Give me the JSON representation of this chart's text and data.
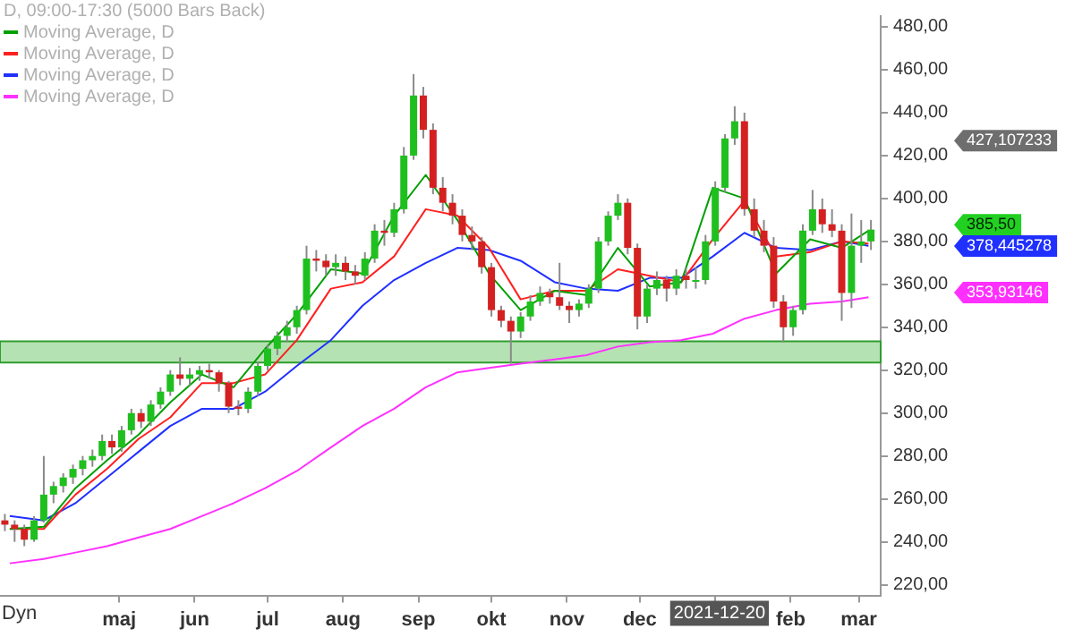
{
  "chart_data": {
    "type": "candlestick",
    "title": "D, 09:00-17:30 (5000 Bars Back)",
    "x": [
      "2021-03-15",
      "2021-03-19",
      "2021-03-23",
      "2021-03-27",
      "2021-03-31",
      "2021-04-04",
      "2021-04-08",
      "2021-04-12",
      "2021-04-16",
      "2021-04-20",
      "2021-04-24",
      "2021-04-28",
      "2021-05-02",
      "2021-05-06",
      "2021-05-10",
      "2021-05-14",
      "2021-05-18",
      "2021-05-22",
      "2021-05-26",
      "2021-05-30",
      "2021-06-03",
      "2021-06-07",
      "2021-06-11",
      "2021-06-15",
      "2021-06-19",
      "2021-06-23",
      "2021-06-27",
      "2021-07-01",
      "2021-07-05",
      "2021-07-09",
      "2021-07-13",
      "2021-07-17",
      "2021-07-21",
      "2021-07-25",
      "2021-07-29",
      "2021-08-02",
      "2021-08-06",
      "2021-08-10",
      "2021-08-14",
      "2021-08-18",
      "2021-08-22",
      "2021-08-26",
      "2021-08-30",
      "2021-09-03",
      "2021-09-07",
      "2021-09-11",
      "2021-09-15",
      "2021-09-19",
      "2021-09-23",
      "2021-09-27",
      "2021-10-01",
      "2021-10-05",
      "2021-10-09",
      "2021-10-13",
      "2021-10-17",
      "2021-10-21",
      "2021-10-25",
      "2021-10-29",
      "2021-11-02",
      "2021-11-06",
      "2021-11-10",
      "2021-11-14",
      "2021-11-18",
      "2021-11-22",
      "2021-11-26",
      "2021-11-30",
      "2021-12-04",
      "2021-12-08",
      "2021-12-12",
      "2021-12-16",
      "2021-12-20",
      "2021-12-24",
      "2021-12-28",
      "2022-01-01",
      "2022-01-05",
      "2022-01-09",
      "2022-01-13",
      "2022-01-17",
      "2022-01-21",
      "2022-01-25",
      "2022-01-29",
      "2022-02-02",
      "2022-02-06",
      "2022-02-10",
      "2022-02-14",
      "2022-02-18",
      "2022-02-22",
      "2022-02-26",
      "2022-03-02",
      "2022-03-06"
    ],
    "ohlc": [
      [
        250,
        253,
        245,
        248
      ],
      [
        248,
        250,
        240,
        246
      ],
      [
        246,
        248,
        238,
        241
      ],
      [
        241,
        252,
        240,
        250
      ],
      [
        250,
        280,
        249,
        262
      ],
      [
        262,
        268,
        258,
        266
      ],
      [
        266,
        272,
        263,
        270
      ],
      [
        270,
        276,
        267,
        274
      ],
      [
        274,
        280,
        271,
        278
      ],
      [
        278,
        283,
        275,
        280
      ],
      [
        280,
        290,
        278,
        287
      ],
      [
        287,
        290,
        281,
        284
      ],
      [
        284,
        294,
        282,
        292
      ],
      [
        292,
        302,
        290,
        300
      ],
      [
        300,
        302,
        293,
        296
      ],
      [
        296,
        306,
        294,
        304
      ],
      [
        304,
        312,
        302,
        310
      ],
      [
        310,
        320,
        308,
        318
      ],
      [
        318,
        326,
        313,
        316
      ],
      [
        316,
        321,
        313,
        318
      ],
      [
        318,
        322,
        315,
        320
      ],
      [
        320,
        323,
        316,
        319
      ],
      [
        319,
        320,
        310,
        314
      ],
      [
        314,
        315,
        300,
        303
      ],
      [
        303,
        306,
        299,
        302
      ],
      [
        302,
        312,
        300,
        310
      ],
      [
        310,
        324,
        308,
        322
      ],
      [
        322,
        332,
        320,
        330
      ],
      [
        330,
        338,
        327,
        336
      ],
      [
        336,
        343,
        333,
        340
      ],
      [
        340,
        350,
        337,
        348
      ],
      [
        348,
        378,
        346,
        372
      ],
      [
        372,
        376,
        366,
        371
      ],
      [
        371,
        374,
        364,
        368
      ],
      [
        368,
        374,
        364,
        370
      ],
      [
        370,
        373,
        362,
        366
      ],
      [
        366,
        369,
        360,
        364
      ],
      [
        364,
        375,
        362,
        372
      ],
      [
        372,
        388,
        370,
        385
      ],
      [
        385,
        390,
        378,
        384
      ],
      [
        384,
        398,
        382,
        395
      ],
      [
        395,
        424,
        393,
        420
      ],
      [
        420,
        458,
        418,
        448
      ],
      [
        448,
        452,
        428,
        432
      ],
      [
        432,
        435,
        402,
        405
      ],
      [
        405,
        410,
        394,
        398
      ],
      [
        398,
        402,
        388,
        392
      ],
      [
        392,
        395,
        380,
        383
      ],
      [
        383,
        387,
        376,
        380
      ],
      [
        380,
        382,
        365,
        368
      ],
      [
        368,
        370,
        345,
        348
      ],
      [
        348,
        350,
        340,
        343
      ],
      [
        343,
        345,
        323,
        338
      ],
      [
        338,
        347,
        335,
        345
      ],
      [
        345,
        355,
        343,
        352
      ],
      [
        352,
        359,
        350,
        356
      ],
      [
        356,
        358,
        351,
        354
      ],
      [
        354,
        370,
        348,
        350
      ],
      [
        350,
        352,
        342,
        348
      ],
      [
        348,
        353,
        345,
        351
      ],
      [
        351,
        360,
        349,
        358
      ],
      [
        358,
        382,
        356,
        380
      ],
      [
        380,
        394,
        378,
        392
      ],
      [
        392,
        402,
        390,
        398
      ],
      [
        398,
        400,
        374,
        377
      ],
      [
        377,
        379,
        339,
        345
      ],
      [
        345,
        360,
        342,
        358
      ],
      [
        358,
        366,
        355,
        362
      ],
      [
        362,
        364,
        352,
        358
      ],
      [
        358,
        367,
        355,
        364
      ],
      [
        364,
        368,
        358,
        362
      ],
      [
        362,
        368,
        358,
        362
      ],
      [
        362,
        383,
        360,
        380
      ],
      [
        380,
        408,
        378,
        405
      ],
      [
        405,
        430,
        403,
        428
      ],
      [
        428,
        443,
        425,
        436
      ],
      [
        436,
        440,
        392,
        395
      ],
      [
        395,
        400,
        382,
        385
      ],
      [
        385,
        390,
        375,
        378
      ],
      [
        378,
        382,
        349,
        352
      ],
      [
        352,
        355,
        333,
        340
      ],
      [
        340,
        350,
        336,
        348
      ],
      [
        348,
        388,
        346,
        385
      ],
      [
        385,
        404,
        383,
        395
      ],
      [
        395,
        400,
        384,
        388
      ],
      [
        388,
        395,
        382,
        385
      ],
      [
        385,
        388,
        343,
        356
      ],
      [
        356,
        393,
        349,
        378
      ],
      [
        378,
        390,
        370,
        380
      ],
      [
        380,
        390,
        376,
        385.5
      ]
    ],
    "series": [
      {
        "name": "Moving Average, D",
        "type": "line",
        "color": "#00a000",
        "x": [
          "2021-03-17",
          "2021-03-31",
          "2021-04-13",
          "2021-04-26",
          "2021-05-09",
          "2021-05-22",
          "2021-06-04",
          "2021-06-17",
          "2021-06-30",
          "2021-07-13",
          "2021-07-27",
          "2021-08-09",
          "2021-08-22",
          "2021-09-04",
          "2021-09-17",
          "2021-09-30",
          "2021-10-13",
          "2021-10-27",
          "2021-11-09",
          "2021-11-22",
          "2021-12-05",
          "2021-12-18",
          "2021-12-31",
          "2022-01-13",
          "2022-01-26",
          "2022-02-09",
          "2022-02-22",
          "2022-03-05"
        ],
        "values": [
          246,
          247,
          265,
          278,
          290,
          305,
          318,
          312,
          330,
          346,
          367,
          365,
          392,
          411,
          390,
          365,
          348,
          357,
          355,
          377,
          359,
          361,
          405,
          400,
          365,
          381,
          377,
          385
        ]
      },
      {
        "name": "Moving Average, D",
        "type": "line",
        "color": "#ff2020",
        "x": [
          "2021-03-17",
          "2021-03-31",
          "2021-04-13",
          "2021-04-26",
          "2021-05-09",
          "2021-05-22",
          "2021-06-04",
          "2021-06-17",
          "2021-06-30",
          "2021-07-13",
          "2021-07-27",
          "2021-08-09",
          "2021-08-22",
          "2021-09-04",
          "2021-09-17",
          "2021-09-30",
          "2021-10-13",
          "2021-10-27",
          "2021-11-09",
          "2021-11-22",
          "2021-12-05",
          "2021-12-18",
          "2021-12-31",
          "2022-01-13",
          "2022-01-26",
          "2022-02-09",
          "2022-02-22",
          "2022-03-05"
        ],
        "values": [
          246,
          246,
          262,
          274,
          288,
          298,
          314,
          314,
          318,
          334,
          358,
          361,
          373,
          395,
          392,
          377,
          353,
          357,
          357,
          367,
          364,
          361,
          381,
          399,
          373,
          375,
          380,
          379
        ]
      },
      {
        "name": "Moving Average, D",
        "type": "line",
        "color": "#2030ff",
        "x": [
          "2021-03-17",
          "2021-03-31",
          "2021-04-13",
          "2021-04-26",
          "2021-05-09",
          "2021-05-22",
          "2021-06-04",
          "2021-06-17",
          "2021-06-30",
          "2021-07-13",
          "2021-07-27",
          "2021-08-09",
          "2021-08-22",
          "2021-09-04",
          "2021-09-17",
          "2021-09-30",
          "2021-10-13",
          "2021-10-27",
          "2021-11-09",
          "2021-11-22",
          "2021-12-05",
          "2021-12-18",
          "2021-12-31",
          "2022-01-13",
          "2022-01-26",
          "2022-02-09",
          "2022-02-22",
          "2022-03-05"
        ],
        "values": [
          252,
          250,
          258,
          270,
          282,
          294,
          302,
          302,
          310,
          322,
          334,
          350,
          362,
          370,
          377,
          376,
          371,
          361,
          358,
          357,
          363,
          363,
          373,
          384,
          377,
          376,
          380,
          378
        ]
      },
      {
        "name": "Moving Average, D",
        "type": "line",
        "color": "#ff30ff",
        "x": [
          "2021-03-17",
          "2021-03-31",
          "2021-04-13",
          "2021-04-26",
          "2021-05-09",
          "2021-05-22",
          "2021-06-04",
          "2021-06-17",
          "2021-06-30",
          "2021-07-13",
          "2021-07-27",
          "2021-08-09",
          "2021-08-22",
          "2021-09-04",
          "2021-09-17",
          "2021-09-30",
          "2021-10-13",
          "2021-10-27",
          "2021-11-09",
          "2021-11-22",
          "2021-12-05",
          "2021-12-18",
          "2021-12-31",
          "2022-01-13",
          "2022-01-26",
          "2022-02-09",
          "2022-02-22",
          "2022-03-05"
        ],
        "values": [
          230,
          232,
          235,
          238,
          242,
          246,
          252,
          258,
          265,
          273,
          284,
          294,
          302,
          312,
          319,
          321,
          323,
          325,
          327,
          331,
          333,
          334,
          337,
          344,
          348,
          351,
          352,
          354
        ]
      }
    ],
    "xlim": [
      "2021-03-13",
      "2022-03-10"
    ],
    "xticks": [
      {
        "value": "2021-05-01",
        "label": "maj"
      },
      {
        "value": "2021-06-01",
        "label": "jun"
      },
      {
        "value": "2021-07-01",
        "label": "jul"
      },
      {
        "value": "2021-08-01",
        "label": "aug"
      },
      {
        "value": "2021-09-01",
        "label": "sep"
      },
      {
        "value": "2021-10-01",
        "label": "okt"
      },
      {
        "value": "2021-11-01",
        "label": "nov"
      },
      {
        "value": "2021-12-01",
        "label": "dec"
      },
      {
        "value": "2022-01-01",
        "label": null
      },
      {
        "value": "2022-02-01",
        "label": "feb"
      },
      {
        "value": "2022-03-01",
        "label": "mar"
      }
    ],
    "ylim": [
      215,
      485
    ],
    "yticks": [
      {
        "value": 220,
        "label": "220,00"
      },
      {
        "value": 240,
        "label": "240,00"
      },
      {
        "value": 260,
        "label": "260,00"
      },
      {
        "value": 280,
        "label": "280,00"
      },
      {
        "value": 300,
        "label": "300,00"
      },
      {
        "value": 320,
        "label": "320,00"
      },
      {
        "value": 340,
        "label": "340,00"
      },
      {
        "value": 360,
        "label": "360,00"
      },
      {
        "value": 380,
        "label": "380,00"
      },
      {
        "value": 400,
        "label": "400,00"
      },
      {
        "value": 420,
        "label": "420,00"
      },
      {
        "value": 440,
        "label": "440,00"
      },
      {
        "value": 460,
        "label": "460,00"
      },
      {
        "value": 480,
        "label": "480,00"
      }
    ],
    "bands": [
      {
        "axis": "y",
        "from": 323.5,
        "to": 333.5,
        "color": "#b5e2b2"
      }
    ],
    "annotations": [
      "427,107233",
      "385,50",
      "378,445278",
      "353,93146",
      "2021-12-20",
      "Dyn"
    ],
    "value_labels": [
      null,
      null,
      null,
      null,
      null,
      null,
      null,
      null,
      null,
      null,
      null,
      null,
      null,
      null,
      null,
      null,
      null,
      null,
      null,
      null,
      null,
      null,
      null,
      null,
      null,
      null,
      null,
      null,
      null,
      null,
      null,
      null,
      null,
      null,
      null,
      null,
      null,
      null,
      null,
      null,
      null,
      null,
      null,
      null,
      null,
      null,
      null,
      null,
      null,
      null,
      null,
      null,
      null,
      null,
      null,
      null,
      null,
      null,
      null,
      null,
      null,
      null,
      null,
      null,
      null,
      null,
      null,
      null,
      null,
      null,
      null,
      null,
      null,
      null,
      null,
      null,
      null,
      null,
      null,
      null,
      null,
      null,
      null,
      null,
      null,
      null,
      null,
      null,
      null,
      null
    ],
    "legend": "top left",
    "grid": false
  }
}
